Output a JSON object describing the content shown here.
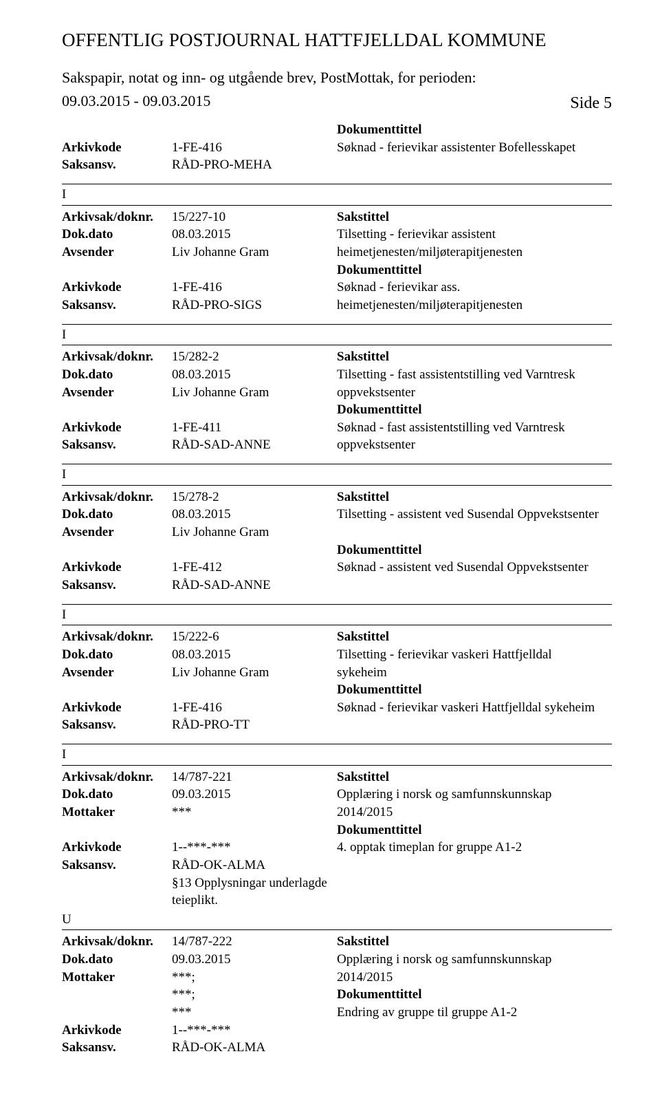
{
  "header": {
    "title": "OFFENTLIG POSTJOURNAL HATTFJELLDAL KOMMUNE",
    "subtitle_line1": "Sakspapir, notat og inn- og utgående brev, PostMottak, for perioden:",
    "subtitle_line2": "09.03.2015 - 09.03.2015",
    "side_label": "Side 5"
  },
  "labels": {
    "arkivkode": "Arkivkode",
    "saksansv": "Saksansv.",
    "arkivsak": "Arkivsak/doknr.",
    "dokdato": "Dok.dato",
    "avsender": "Avsender",
    "mottaker": "Mottaker",
    "dokumenttittel": "Dokumenttittel",
    "sakstittel": "Sakstittel"
  },
  "pre_entry": {
    "arkivkode": "1-FE-416",
    "saksansv": "RÅD-PRO-MEHA",
    "dokumenttittel_text": "Søknad - ferievikar assistenter Bofellesskapet"
  },
  "entries": [
    {
      "ival": "I",
      "arkivsak": "15/227-10",
      "dokdato": "08.03.2015",
      "avsender": "Liv Johanne Gram",
      "arkivkode": "1-FE-416",
      "saksansv": "RÅD-PRO-SIGS",
      "sakstittel_lines": [
        "Tilsetting - ferievikar assistent",
        "heimetjenesten/miljøterapitjenesten"
      ],
      "dokumenttittel_lines": [
        "Søknad - ferievikar ass.",
        "heimetjenesten/miljøterapitjenesten"
      ]
    },
    {
      "ival": "I",
      "arkivsak": "15/282-2",
      "dokdato": "08.03.2015",
      "avsender": "Liv Johanne Gram",
      "arkivkode": "1-FE-411",
      "saksansv": "RÅD-SAD-ANNE",
      "sakstittel_lines": [
        "Tilsetting - fast assistentstilling ved Varntresk",
        "oppvekstsenter"
      ],
      "dokumenttittel_lines": [
        "Søknad - fast assistentstilling ved Varntresk",
        "oppvekstsenter"
      ]
    },
    {
      "ival": "I",
      "arkivsak": "15/278-2",
      "dokdato": "08.03.2015",
      "avsender": "Liv Johanne Gram",
      "arkivkode": "1-FE-412",
      "saksansv": "RÅD-SAD-ANNE",
      "sakstittel_lines": [
        "Tilsetting - assistent ved Susendal Oppvekstsenter"
      ],
      "dokumenttittel_lines": [
        "Søknad - assistent ved Susendal Oppvekstsenter"
      ],
      "blank_after_avsender": true
    },
    {
      "ival": "I",
      "arkivsak": "15/222-6",
      "dokdato": "08.03.2015",
      "avsender": "Liv Johanne Gram",
      "arkivkode": "1-FE-416",
      "saksansv": "RÅD-PRO-TT",
      "sakstittel_lines": [
        "Tilsetting - ferievikar vaskeri Hattfjelldal",
        "sykeheim"
      ],
      "dokumenttittel_lines": [
        "Søknad - ferievikar vaskeri Hattfjelldal sykeheim"
      ],
      "blank_after_doktittel": true
    }
  ],
  "entry5": {
    "ival": "I",
    "arkivsak": "14/787-221",
    "dokdato": "09.03.2015",
    "mottaker": "***",
    "arkivkode": "1--***-***",
    "saksansv": "RÅD-OK-ALMA",
    "extra_lines": [
      "§13 Opplysningar underlagde",
      "teieplikt."
    ],
    "sakstittel_lines": [
      "Opplæring i norsk og samfunnskunnskap",
      "2014/2015"
    ],
    "dokumenttittel_lines": [
      "4. opptak timeplan for gruppe A1-2"
    ]
  },
  "entry6": {
    "ival": "U",
    "arkivsak": "14/787-222",
    "dokdato": "09.03.2015",
    "mottaker_lines": [
      "***;",
      "***;",
      "***"
    ],
    "arkivkode": "1--***-***",
    "saksansv": "RÅD-OK-ALMA",
    "sakstittel_lines": [
      "Opplæring i norsk og samfunnskunnskap",
      "2014/2015"
    ],
    "dokumenttittel_lines": [
      "Endring av gruppe til gruppe A1-2"
    ]
  }
}
